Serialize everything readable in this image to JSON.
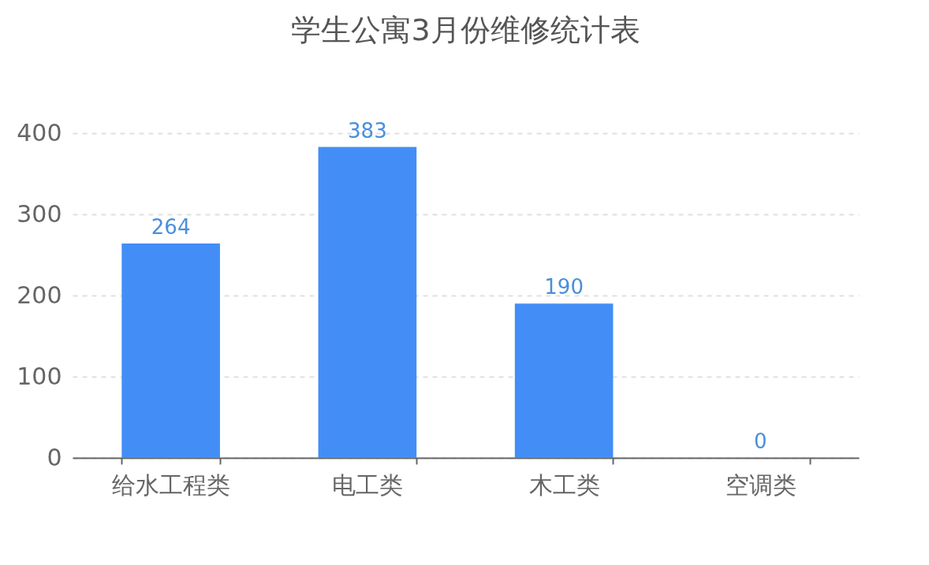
{
  "chart_data": {
    "type": "bar",
    "title": "学生公寓3月份维修统计表",
    "categories": [
      "给水工程类",
      "电工类",
      "木工类",
      "空调类"
    ],
    "values": [
      264,
      383,
      190,
      0
    ],
    "color": "#438ef6",
    "ylim": [
      0,
      400
    ],
    "yticks": [
      0,
      100,
      200,
      300,
      400
    ],
    "grid": "y",
    "data_labels": true
  }
}
